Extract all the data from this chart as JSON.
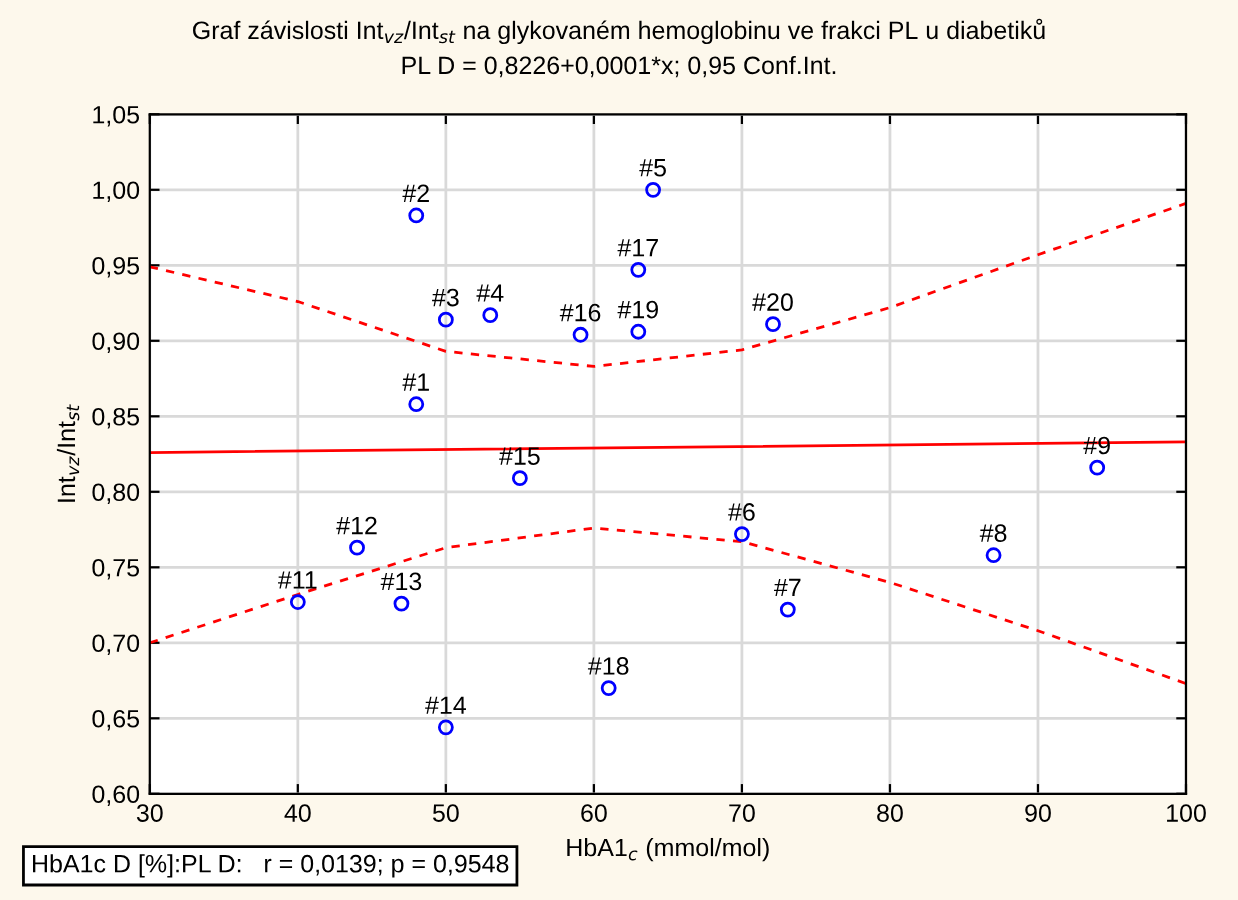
{
  "chart_data": {
    "type": "scatter",
    "title": "Graf závislosti Int$_{vz}$/Int$_{st}$ na glykovaném hemoglobinu ve frakci PL u diabetiků",
    "subtitle": "PL D = 0,8226+0,0001*x; 0,95 Conf.Int.",
    "xlabel": "HbA1$_{c}$ (mmol/mol)",
    "ylabel": "Int$_{vz}$/Int$_{st}$",
    "series": [
      {
        "color": "#0000ff",
        "marker": "circle",
        "x": [
          48,
          48,
          50,
          53,
          64,
          70,
          73.1,
          87,
          94,
          72.1,
          40,
          44,
          47,
          50,
          55,
          59.1,
          63,
          61,
          63
        ],
        "values": [
          0.858,
          0.983,
          0.914,
          0.917,
          1.0,
          0.772,
          0.722,
          0.758,
          0.816,
          0.911,
          0.727,
          0.763,
          0.726,
          0.644,
          0.809,
          0.904,
          0.947,
          0.67,
          0.906
        ]
      },
      {
        "type": "line",
        "color": "#ff0000",
        "line_style": "solid",
        "x": [
          30,
          100
        ],
        "values": [
          0.826,
          0.833
        ]
      },
      {
        "type": "line",
        "color": "#ff0000",
        "line_style": "dashed",
        "x": [
          30,
          40,
          50,
          60,
          70,
          80,
          90,
          100
        ],
        "values": [
          0.949,
          0.926,
          0.893,
          0.883,
          0.894,
          0.922,
          0.957,
          0.991
        ]
      },
      {
        "type": "line",
        "color": "#ff0000",
        "line_style": "dashed",
        "x": [
          30,
          40,
          50,
          60,
          70,
          80,
          90,
          100
        ],
        "values": [
          0.7,
          0.732,
          0.763,
          0.776,
          0.767,
          0.74,
          0.708,
          0.673
        ]
      }
    ],
    "annotations": [
      {
        "text": "#1",
        "x": 48,
        "y": 0.858
      },
      {
        "text": "#2",
        "x": 48,
        "y": 0.983
      },
      {
        "text": "#3",
        "x": 50,
        "y": 0.914
      },
      {
        "text": "#4",
        "x": 53,
        "y": 0.917
      },
      {
        "text": "#5",
        "x": 64,
        "y": 1.0
      },
      {
        "text": "#6",
        "x": 70,
        "y": 0.772
      },
      {
        "text": "#7",
        "x": 73.1,
        "y": 0.722
      },
      {
        "text": "#8",
        "x": 87,
        "y": 0.758
      },
      {
        "text": "#9",
        "x": 94,
        "y": 0.816
      },
      {
        "text": "#20",
        "x": 72.1,
        "y": 0.911
      },
      {
        "text": "#11",
        "x": 40,
        "y": 0.727
      },
      {
        "text": "#12",
        "x": 44,
        "y": 0.763
      },
      {
        "text": "#13",
        "x": 47,
        "y": 0.726
      },
      {
        "text": "#14",
        "x": 50,
        "y": 0.644
      },
      {
        "text": "#15",
        "x": 55,
        "y": 0.809
      },
      {
        "text": "#16",
        "x": 59.1,
        "y": 0.904
      },
      {
        "text": "#17",
        "x": 63,
        "y": 0.947
      },
      {
        "text": "#18",
        "x": 61,
        "y": 0.67
      },
      {
        "text": "#19",
        "x": 63,
        "y": 0.906
      },
      "HbA1c D [%]:PL D:   r = 0,0139; p = 0,9548"
    ],
    "xlim": [
      30,
      100
    ],
    "xticks": [
      30,
      40,
      50,
      60,
      70,
      80,
      90,
      100
    ],
    "ylim": [
      0.6,
      1.05
    ],
    "yticks": [
      {
        "value": 0.6,
        "label": "0,60"
      },
      {
        "value": 0.65,
        "label": "0,65"
      },
      {
        "value": 0.7,
        "label": "0,70"
      },
      {
        "value": 0.75,
        "label": "0,75"
      },
      {
        "value": 0.8,
        "label": "0,80"
      },
      {
        "value": 0.85,
        "label": "0,85"
      },
      {
        "value": 0.9,
        "label": "0,90"
      },
      {
        "value": 0.95,
        "label": "0,95"
      },
      {
        "value": 1.0,
        "label": "1,00"
      },
      {
        "value": 1.05,
        "label": "1,05"
      }
    ],
    "grid": true
  }
}
